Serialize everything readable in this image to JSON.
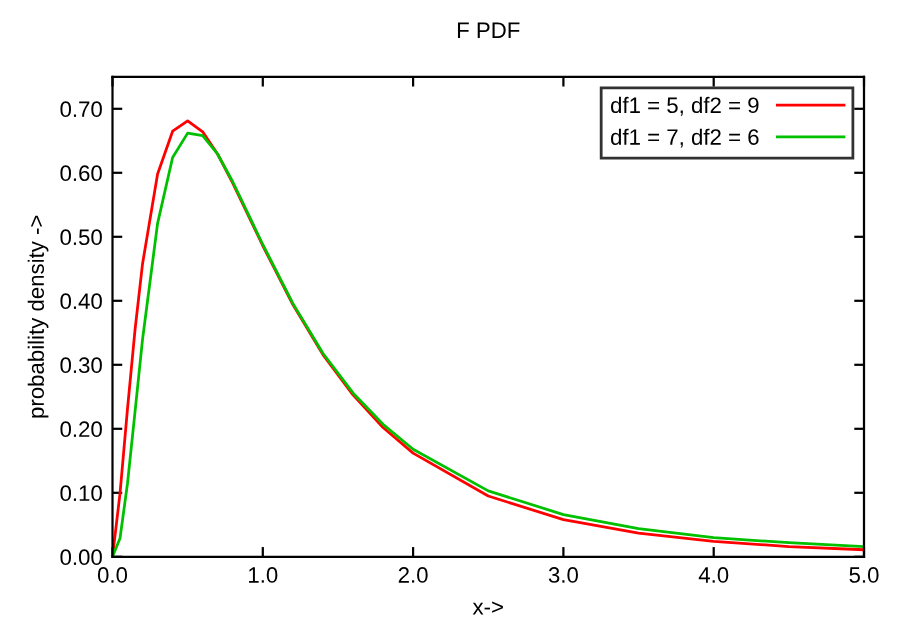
{
  "chart_data": {
    "type": "line",
    "title": "F PDF",
    "xlabel": "x->",
    "ylabel": "probability density ->",
    "xlim": [
      0,
      5
    ],
    "xticks": [
      {
        "value": 0,
        "label": "0.0"
      },
      {
        "value": 1,
        "label": "1.0"
      },
      {
        "value": 2,
        "label": "2.0"
      },
      {
        "value": 3,
        "label": "3.0"
      },
      {
        "value": 4,
        "label": "4.0"
      },
      {
        "value": 5,
        "label": "5.0"
      }
    ],
    "ylim": [
      0,
      0.75
    ],
    "yticks": [
      {
        "value": 0,
        "label": "0.00"
      },
      {
        "value": 0.1,
        "label": "0.10"
      },
      {
        "value": 0.2,
        "label": "0.20"
      },
      {
        "value": 0.3,
        "label": "0.30"
      },
      {
        "value": 0.4,
        "label": "0.40"
      },
      {
        "value": 0.5,
        "label": "0.50"
      },
      {
        "value": 0.6,
        "label": "0.60"
      },
      {
        "value": 0.7,
        "label": "0.70"
      }
    ],
    "x": [
      0,
      0.05,
      0.1,
      0.15,
      0.2,
      0.3,
      0.4,
      0.5,
      0.6,
      0.7,
      0.8,
      1.0,
      1.2,
      1.4,
      1.6,
      1.8,
      2.0,
      2.5,
      3.0,
      3.5,
      4.0,
      4.5,
      5.0
    ],
    "series": [
      {
        "name": "df1 = 5, df2 = 9",
        "color": "#ff0000",
        "values": [
          0,
          0.099,
          0.232,
          0.355,
          0.458,
          0.598,
          0.665,
          0.681,
          0.664,
          0.629,
          0.584,
          0.486,
          0.394,
          0.316,
          0.253,
          0.202,
          0.162,
          0.095,
          0.058,
          0.037,
          0.024,
          0.016,
          0.011
        ]
      },
      {
        "name": "df1 = 7, df2 = 6",
        "color": "#00c000",
        "values": [
          0,
          0.029,
          0.115,
          0.227,
          0.34,
          0.521,
          0.624,
          0.662,
          0.658,
          0.629,
          0.586,
          0.488,
          0.396,
          0.318,
          0.256,
          0.207,
          0.168,
          0.103,
          0.066,
          0.044,
          0.03,
          0.022,
          0.016
        ]
      }
    ],
    "legend": "top right",
    "grid": false,
    "marker": "none",
    "line_style": "solid"
  }
}
